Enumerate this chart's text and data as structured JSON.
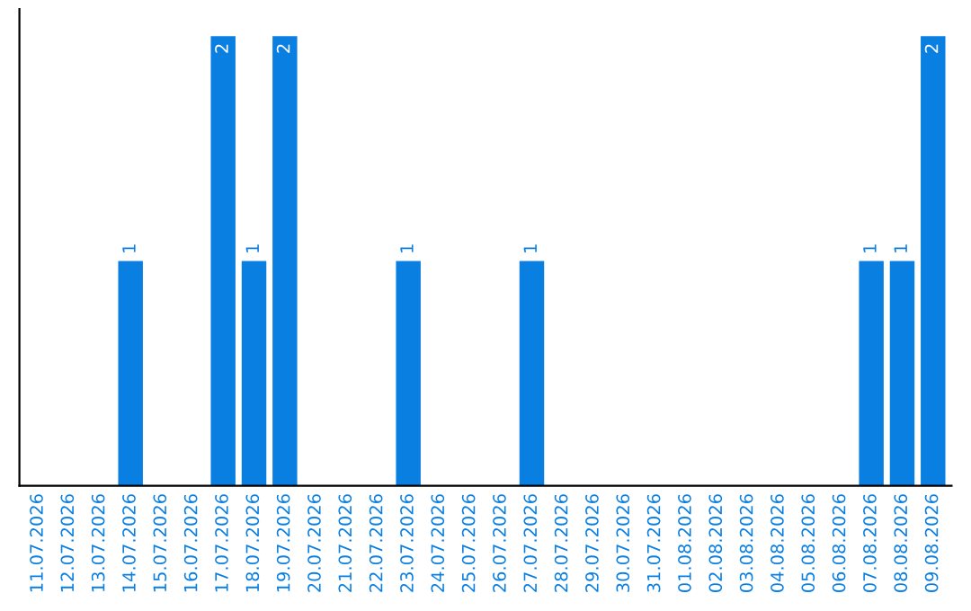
{
  "chart_data": {
    "type": "bar",
    "categories": [
      "11.07.2026",
      "12.07.2026",
      "13.07.2026",
      "14.07.2026",
      "15.07.2026",
      "16.07.2026",
      "17.07.2026",
      "18.07.2026",
      "19.07.2026",
      "20.07.2026",
      "21.07.2026",
      "22.07.2026",
      "23.07.2026",
      "24.07.2026",
      "25.07.2026",
      "26.07.2026",
      "27.07.2026",
      "28.07.2026",
      "29.07.2026",
      "30.07.2026",
      "31.07.2026",
      "01.08.2026",
      "02.08.2026",
      "03.08.2026",
      "04.08.2026",
      "05.08.2026",
      "06.08.2026",
      "07.08.2026",
      "08.08.2026",
      "09.08.2026"
    ],
    "values": [
      0,
      0,
      0,
      1,
      0,
      0,
      2,
      1,
      2,
      0,
      0,
      0,
      1,
      0,
      0,
      0,
      1,
      0,
      0,
      0,
      0,
      0,
      0,
      0,
      0,
      0,
      0,
      1,
      1,
      2
    ],
    "value_labels": [
      null,
      null,
      null,
      "1",
      null,
      null,
      "2",
      "1",
      "2",
      null,
      null,
      null,
      "1",
      null,
      null,
      null,
      "1",
      null,
      null,
      null,
      null,
      null,
      null,
      null,
      null,
      null,
      null,
      "1",
      "1",
      "2"
    ],
    "color": "#0a7fe2",
    "tick_labels": "x",
    "grid": false,
    "legend": false
  }
}
